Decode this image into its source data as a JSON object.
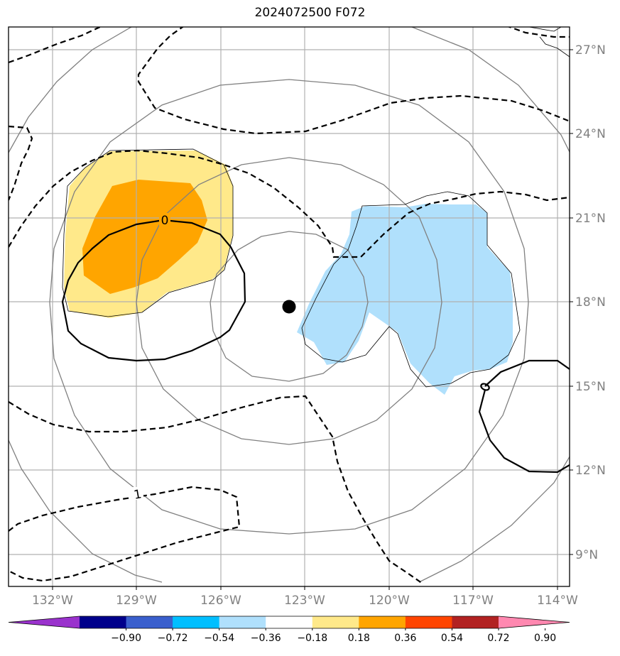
{
  "title": "2024072500 F072",
  "map": {
    "lat_labels": [
      "27°N",
      "24°N",
      "21°N",
      "18°N",
      "15°N",
      "12°N",
      "9°N"
    ],
    "lon_labels": [
      "132°W",
      "129°W",
      "126°W",
      "123°W",
      "120°W",
      "117°W",
      "114°W"
    ],
    "contour_labels": [
      "0",
      "1"
    ],
    "center_marker": "storm-center",
    "colors": {
      "shade_positive_light": "#ffe98a",
      "shade_positive_dark": "#ffa500",
      "shade_negative_light": "#b0e0fc",
      "grid": "#b0b0b0",
      "range_rings": "#808080"
    }
  },
  "colorbar": {
    "labels": [
      "−0.90",
      "−0.72",
      "−0.54",
      "−0.36",
      "−0.18",
      "0.18",
      "0.36",
      "0.54",
      "0.72",
      "0.90"
    ],
    "colors": [
      "#9a32cd",
      "#00008b",
      "#3a5fcd",
      "#00bfff",
      "#b0e0fc",
      "#ffffff",
      "#ffe98a",
      "#ffa500",
      "#ff4500",
      "#b22222",
      "#ff88b0"
    ]
  }
}
